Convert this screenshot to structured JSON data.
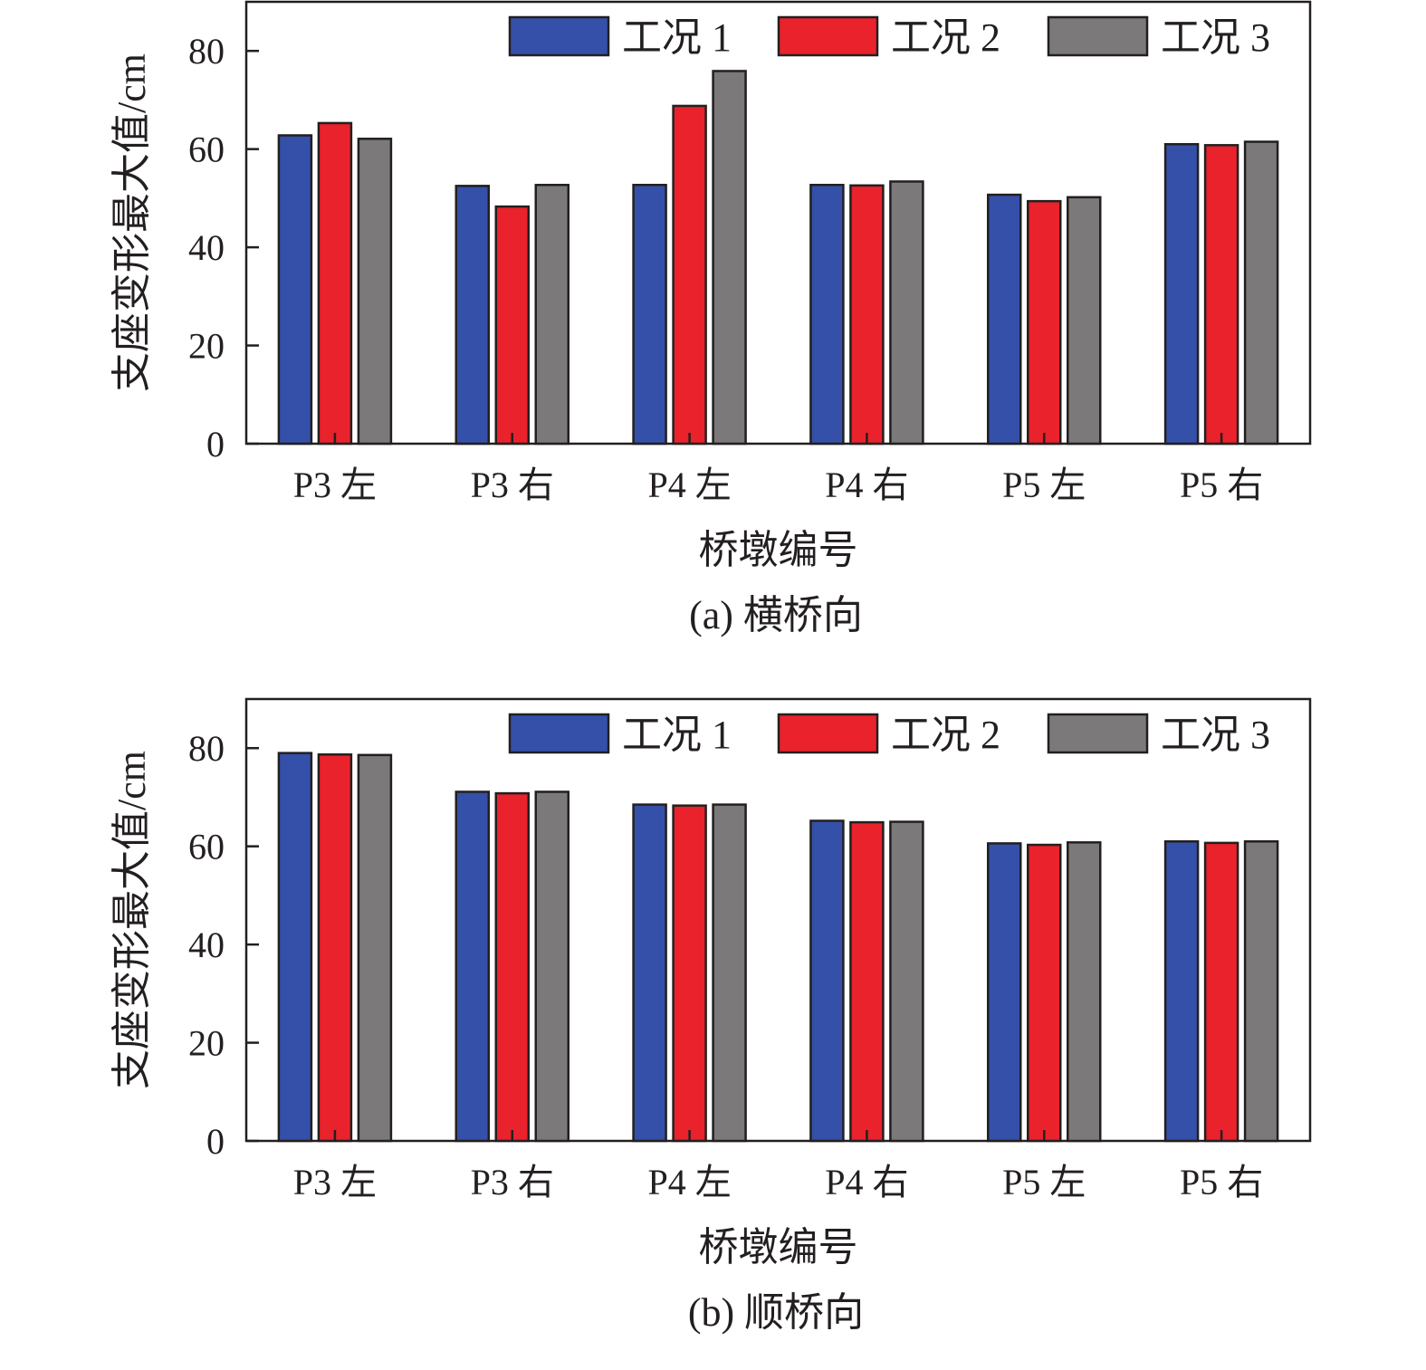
{
  "colors": {
    "axis": "#231f20",
    "series": [
      "#3450a8",
      "#e9222b",
      "#7b7979"
    ]
  },
  "chart_data": [
    {
      "type": "bar",
      "caption": "(a) 横桥向",
      "xlabel": "桥墩编号",
      "ylabel": "支座变形最大值/cm",
      "ylim": [
        0,
        90
      ],
      "yticks": [
        0,
        20,
        40,
        60,
        80
      ],
      "grid": false,
      "legend_position": "top-right",
      "categories": [
        "P3 左",
        "P3 右",
        "P4 左",
        "P4 右",
        "P5 左",
        "P5 右"
      ],
      "series": [
        {
          "name": "工况 1",
          "values": [
            62.8,
            52.5,
            52.7,
            52.7,
            50.7,
            61.0
          ]
        },
        {
          "name": "工况 2",
          "values": [
            65.3,
            48.3,
            68.8,
            52.6,
            49.4,
            60.8
          ]
        },
        {
          "name": "工况 3",
          "values": [
            62.1,
            52.7,
            75.9,
            53.4,
            50.2,
            61.5
          ]
        }
      ]
    },
    {
      "type": "bar",
      "caption": "(b) 顺桥向",
      "xlabel": "桥墩编号",
      "ylabel": "支座变形最大值/cm",
      "ylim": [
        0,
        90
      ],
      "yticks": [
        0,
        20,
        40,
        60,
        80
      ],
      "grid": false,
      "legend_position": "top-right",
      "categories": [
        "P3 左",
        "P3 右",
        "P4 左",
        "P4 右",
        "P5 左",
        "P5 右"
      ],
      "series": [
        {
          "name": "工况 1",
          "values": [
            79.0,
            71.1,
            68.5,
            65.2,
            60.6,
            61.0
          ]
        },
        {
          "name": "工况 2",
          "values": [
            78.7,
            70.8,
            68.3,
            64.9,
            60.3,
            60.7
          ]
        },
        {
          "name": "工况 3",
          "values": [
            78.6,
            71.1,
            68.5,
            65.0,
            60.8,
            61.0
          ]
        }
      ]
    }
  ]
}
